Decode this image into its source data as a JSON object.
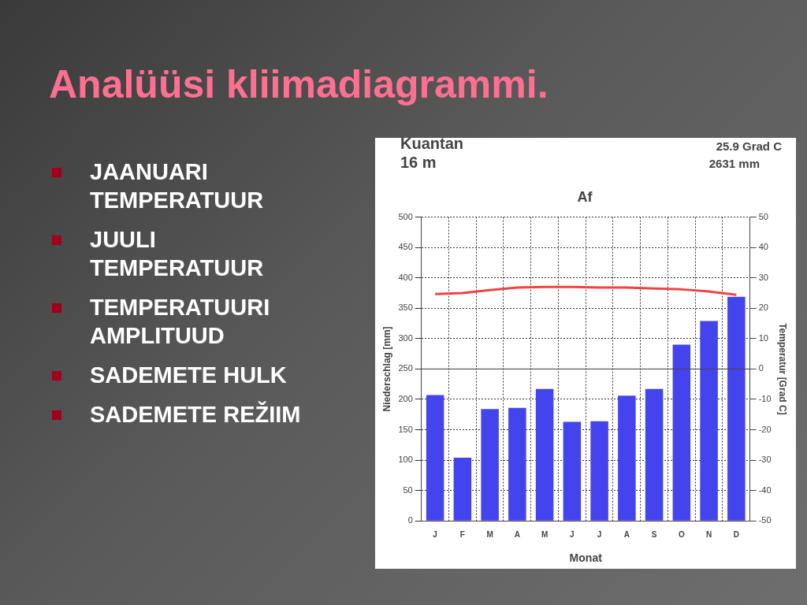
{
  "chart_data": {
    "type": "bar",
    "title": "Analüüsi kliimadiagrammi.",
    "subtitle": "Af",
    "xlabel": "Monat",
    "ylabel": "Niederschlag [mm]",
    "y2label": "Temperatur [Grad C]",
    "categories": [
      "J",
      "F",
      "M",
      "A",
      "M",
      "J",
      "J",
      "A",
      "S",
      "O",
      "N",
      "D"
    ],
    "series": [
      {
        "color": "#4444ee",
        "values": [
          207,
          104,
          184,
          186,
          217,
          163,
          164,
          206,
          217,
          290,
          329,
          369
        ]
      },
      {
        "type": "line",
        "axis": "y2",
        "color": "#ee4444",
        "values": [
          24.7,
          25,
          26,
          26.8,
          27,
          27,
          26.8,
          26.8,
          26.5,
          26.2,
          25.5,
          24.4
        ]
      }
    ],
    "ylim": [
      0,
      500
    ],
    "yticks": [
      0,
      50,
      100,
      150,
      200,
      250,
      300,
      350,
      400,
      450,
      500
    ],
    "y2lim": [
      -50,
      50
    ],
    "y2ticks": [
      -50,
      -40,
      -30,
      -20,
      -10,
      0,
      10,
      20,
      30,
      40,
      50
    ],
    "grid": true,
    "legend": false,
    "marker": "none",
    "line_style": "solid",
    "annotations": [
      "Kuantan",
      "16 m",
      "25.9 Grad C",
      "2631 mm",
      "JAANUARI TEMPERATUUR",
      "JUULI TEMPERATUUR",
      "TEMPERATUURI AMPLITUUD",
      "SADEMETE HULK",
      "SADEMETE REŽIIM"
    ]
  }
}
